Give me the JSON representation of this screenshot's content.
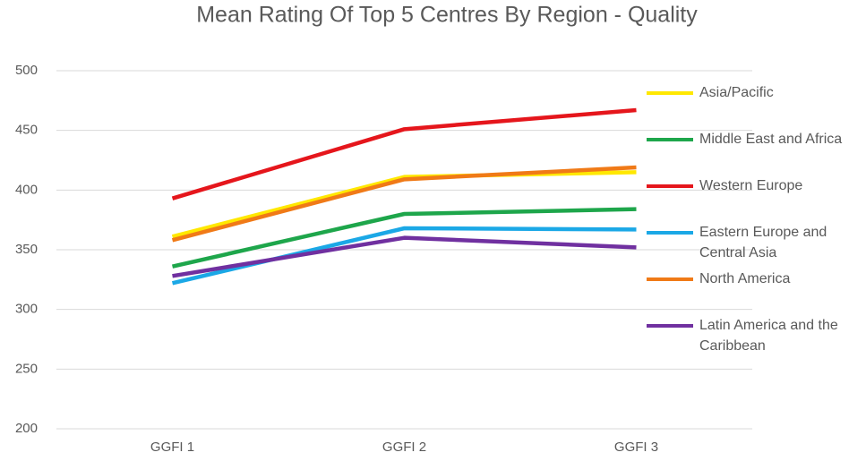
{
  "chart_data": {
    "type": "line",
    "title": "Mean Rating Of Top 5 Centres By Region - Quality",
    "categories": [
      "GGFI 1",
      "GGFI 2",
      "GGFI 3"
    ],
    "series": [
      {
        "name": "Asia/Pacific",
        "color": "#ffe800",
        "values": [
          361,
          411,
          415
        ]
      },
      {
        "name": "Middle East and Africa",
        "color": "#1ea64b",
        "values": [
          336,
          380,
          384
        ]
      },
      {
        "name": "Western Europe",
        "color": "#e5161c",
        "values": [
          393,
          451,
          467
        ]
      },
      {
        "name": "Eastern Europe and Central Asia",
        "color": "#1ba8e6",
        "values": [
          322,
          368,
          367
        ]
      },
      {
        "name": "North America",
        "color": "#f07a17",
        "values": [
          358,
          409,
          419
        ]
      },
      {
        "name": "Latin America and the Caribbean",
        "color": "#7030a0",
        "values": [
          328,
          360,
          352
        ]
      }
    ],
    "ylim": [
      200,
      500
    ],
    "yticks": [
      200,
      250,
      300,
      350,
      400,
      450,
      500
    ],
    "grid": true,
    "legend": "right"
  }
}
